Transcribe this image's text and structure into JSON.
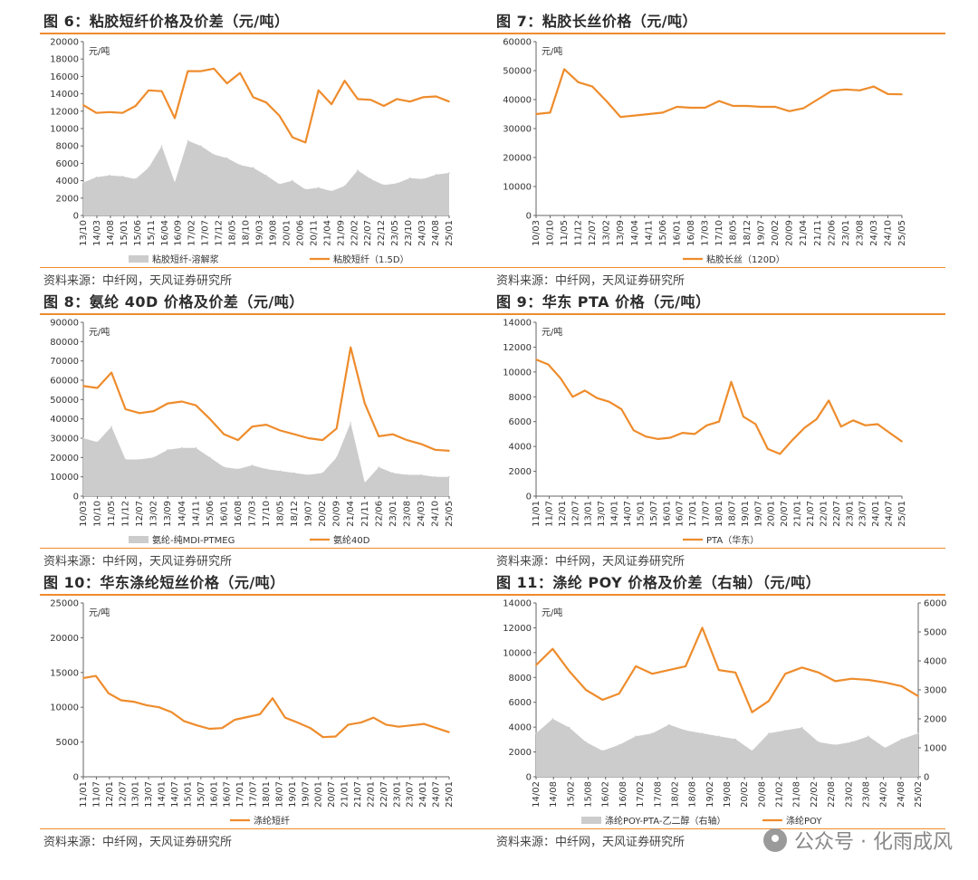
{
  "colors": {
    "accent": "#ee8c2c",
    "area": "#cccccc"
  },
  "watermark": {
    "text": "公众号 · 化雨成风"
  },
  "chart_data": [
    {
      "type": "area",
      "title": "图 6：粘胶短纤价格及价差（元/吨）",
      "source": "资料来源：中纤网，天风证券研究所",
      "unit_label": "元/吨",
      "x_ticks": [
        "13/10",
        "14/03",
        "14/08",
        "15/01",
        "15/06",
        "15/11",
        "16/04",
        "16/09",
        "17/02",
        "17/07",
        "17/12",
        "18/05",
        "18/10",
        "19/03",
        "19/08",
        "20/01",
        "20/06",
        "20/11",
        "21/04",
        "21/09",
        "22/02",
        "22/07",
        "22/12",
        "23/05",
        "23/10",
        "24/03",
        "24/08",
        "25/01"
      ],
      "ylim": [
        0,
        20000
      ],
      "y_ticks": [
        0,
        2000,
        4000,
        6000,
        8000,
        10000,
        12000,
        14000,
        16000,
        18000,
        20000
      ],
      "series": [
        {
          "name": "粘胶短纤-溶解浆",
          "kind": "area",
          "values": [
            3800,
            4400,
            4600,
            4500,
            4200,
            5500,
            8000,
            3800,
            8600,
            8000,
            7000,
            6600,
            5800,
            5500,
            4600,
            3600,
            4000,
            3000,
            3200,
            2800,
            3400,
            5200,
            4200,
            3500,
            3700,
            4300,
            4200,
            4700,
            4900
          ]
        },
        {
          "name": "粘胶短纤（1.5D）",
          "kind": "line",
          "values": [
            12700,
            11800,
            11900,
            11800,
            12600,
            14400,
            14300,
            11200,
            16600,
            16600,
            16900,
            15200,
            16400,
            13600,
            13000,
            11500,
            9000,
            8400,
            14400,
            12800,
            15500,
            13400,
            13300,
            12600,
            13400,
            13100,
            13600,
            13700,
            13100
          ]
        }
      ]
    },
    {
      "type": "line",
      "title": "图 7：粘胶长丝价格（元/吨）",
      "source": "资料来源：中纤网，天风证券研究所",
      "unit_label": "元/吨",
      "x_ticks": [
        "10/03",
        "10/10",
        "11/05",
        "11/12",
        "12/07",
        "13/02",
        "13/09",
        "14/04",
        "14/11",
        "15/06",
        "16/01",
        "16/08",
        "17/03",
        "17/10",
        "18/05",
        "18/12",
        "19/07",
        "20/02",
        "20/09",
        "21/04",
        "21/11",
        "22/06",
        "23/01",
        "23/08",
        "24/03",
        "24/10",
        "25/05"
      ],
      "ylim": [
        0,
        60000
      ],
      "y_ticks": [
        0,
        10000,
        20000,
        30000,
        40000,
        50000,
        60000
      ],
      "series": [
        {
          "name": "粘胶长丝（120D）",
          "kind": "line",
          "values": [
            35000,
            35500,
            50500,
            46000,
            44500,
            39500,
            34000,
            34500,
            35000,
            35500,
            37500,
            37200,
            37200,
            39500,
            37800,
            37800,
            37500,
            37500,
            36000,
            37000,
            40000,
            43000,
            43500,
            43200,
            44500,
            41900,
            41800
          ]
        }
      ]
    },
    {
      "type": "area",
      "title": "图 8：氨纶 40D 价格及价差（元/吨）",
      "source": "资料来源：中纤网，天风证券研究所",
      "unit_label": "元/吨",
      "x_ticks": [
        "10/03",
        "10/10",
        "11/05",
        "11/12",
        "12/07",
        "13/02",
        "13/09",
        "14/04",
        "14/11",
        "15/06",
        "16/01",
        "16/08",
        "17/03",
        "17/10",
        "18/05",
        "18/12",
        "19/07",
        "20/02",
        "20/09",
        "21/04",
        "21/11",
        "22/06",
        "23/01",
        "23/08",
        "24/03",
        "24/10",
        "25/05"
      ],
      "ylim": [
        0,
        90000
      ],
      "y_ticks": [
        0,
        10000,
        20000,
        30000,
        40000,
        50000,
        60000,
        70000,
        80000,
        90000
      ],
      "series": [
        {
          "name": "氨纶-纯MDI-PTMEG",
          "kind": "area",
          "values": [
            30000,
            28000,
            36000,
            19000,
            19000,
            20000,
            24000,
            25000,
            25000,
            20000,
            15000,
            14000,
            16000,
            14000,
            13000,
            12000,
            11000,
            12000,
            20000,
            38000,
            7000,
            15000,
            12000,
            11000,
            11000,
            10000,
            10000
          ]
        },
        {
          "name": "氨纶40D",
          "kind": "line",
          "values": [
            57000,
            56000,
            64000,
            45000,
            43000,
            44000,
            48000,
            49000,
            47000,
            40000,
            32000,
            29000,
            36000,
            37000,
            34000,
            32000,
            30000,
            29000,
            35000,
            77000,
            48000,
            31000,
            32000,
            29000,
            27000,
            24000,
            23500
          ]
        }
      ]
    },
    {
      "type": "line",
      "title": "图 9：华东 PTA 价格（元/吨）",
      "source": "资料来源：中纤网，天风证券研究所",
      "unit_label": "元/吨",
      "x_ticks": [
        "11/01",
        "11/07",
        "12/01",
        "12/07",
        "13/01",
        "13/07",
        "14/01",
        "14/07",
        "15/01",
        "15/07",
        "16/01",
        "16/07",
        "17/01",
        "17/07",
        "18/01",
        "18/07",
        "19/01",
        "19/07",
        "20/01",
        "20/07",
        "21/01",
        "21/07",
        "22/01",
        "22/07",
        "23/01",
        "23/07",
        "24/01",
        "24/07",
        "25/01"
      ],
      "ylim": [
        0,
        14000
      ],
      "y_ticks": [
        0,
        2000,
        4000,
        6000,
        8000,
        10000,
        12000,
        14000
      ],
      "series": [
        {
          "name": "PTA（华东）",
          "kind": "line",
          "values": [
            11000,
            10600,
            9500,
            8000,
            8500,
            7900,
            7600,
            7000,
            5300,
            4800,
            4600,
            4700,
            5100,
            5000,
            5700,
            6000,
            9200,
            6400,
            5800,
            3800,
            3400,
            4500,
            5500,
            6200,
            7700,
            5600,
            6100,
            5700,
            5800,
            5100,
            4400
          ]
        }
      ]
    },
    {
      "type": "line",
      "title": "图 10：华东涤纶短丝价格（元/吨）",
      "source": "资料来源：中纤网，天风证券研究所",
      "unit_label": "元/吨",
      "x_ticks": [
        "11/01",
        "11/07",
        "12/01",
        "12/07",
        "13/01",
        "13/07",
        "14/01",
        "14/07",
        "15/01",
        "15/07",
        "16/01",
        "16/07",
        "17/01",
        "17/07",
        "18/01",
        "18/07",
        "19/01",
        "19/07",
        "20/01",
        "20/07",
        "21/01",
        "21/07",
        "22/01",
        "22/07",
        "23/01",
        "23/07",
        "24/01",
        "24/07",
        "25/01"
      ],
      "ylim": [
        0,
        25000
      ],
      "y_ticks": [
        0,
        5000,
        10000,
        15000,
        20000,
        25000
      ],
      "series": [
        {
          "name": "涤纶短纤",
          "kind": "line",
          "values": [
            14200,
            14500,
            12000,
            11000,
            10800,
            10300,
            10000,
            9300,
            8000,
            7400,
            6900,
            7000,
            8200,
            8600,
            9000,
            11300,
            8500,
            7800,
            7000,
            5700,
            5800,
            7500,
            7800,
            8500,
            7500,
            7200,
            7400,
            7600,
            7000,
            6400
          ]
        }
      ]
    },
    {
      "type": "area",
      "title": "图 11：涤纶 POY 价格及价差（右轴）（元/吨）",
      "source": "资料来源：中纤网，天风证券研究所",
      "unit_label": "元/吨",
      "x_ticks": [
        "14/02",
        "14/08",
        "15/02",
        "15/08",
        "16/02",
        "16/08",
        "17/02",
        "17/08",
        "18/02",
        "18/08",
        "19/02",
        "19/08",
        "20/02",
        "20/08",
        "21/02",
        "21/08",
        "22/02",
        "22/08",
        "23/02",
        "23/08",
        "24/02",
        "24/08",
        "25/02"
      ],
      "ylim": [
        0,
        14000
      ],
      "y_ticks": [
        0,
        2000,
        4000,
        6000,
        8000,
        10000,
        12000,
        14000
      ],
      "y2lim": [
        0,
        6000
      ],
      "y2_ticks": [
        0,
        1000,
        2000,
        3000,
        4000,
        5000,
        6000
      ],
      "series": [
        {
          "name": "涤纶POY-PTA-乙二醇（右轴）",
          "kind": "area",
          "axis": "right",
          "values": [
            1500,
            2000,
            1700,
            1200,
            900,
            1100,
            1400,
            1500,
            1800,
            1600,
            1500,
            1400,
            1300,
            900,
            1500,
            1600,
            1700,
            1200,
            1100,
            1200,
            1400,
            1000,
            1300,
            1500
          ]
        },
        {
          "name": "涤纶POY",
          "kind": "line",
          "axis": "left",
          "values": [
            9000,
            10300,
            8500,
            7000,
            6200,
            6700,
            8900,
            8300,
            8600,
            8900,
            12000,
            8600,
            8400,
            5200,
            6100,
            8300,
            8800,
            8400,
            7700,
            7900,
            7800,
            7600,
            7300,
            6500
          ]
        }
      ]
    }
  ]
}
